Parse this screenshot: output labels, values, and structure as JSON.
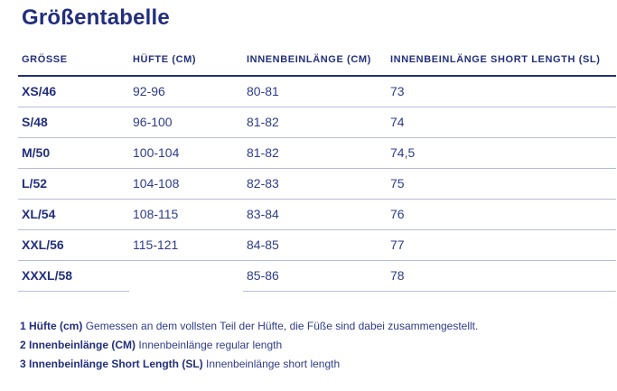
{
  "page": {
    "title": "Größentabelle"
  },
  "table": {
    "headers": [
      "GRÖSSE",
      "HÜFTE (CM)",
      "INNENBEINLÄNGE (CM)",
      "INNENBEINLÄNGE SHORT LENGTH (SL)"
    ],
    "rows": [
      {
        "size": "XS/46",
        "hip": "92-96",
        "inseam": "80-81",
        "inseam_sl": "73"
      },
      {
        "size": "S/48",
        "hip": "96-100",
        "inseam": "81-82",
        "inseam_sl": "74"
      },
      {
        "size": "M/50",
        "hip": "100-104",
        "inseam": "81-82",
        "inseam_sl": "74,5"
      },
      {
        "size": "L/52",
        "hip": "104-108",
        "inseam": "82-83",
        "inseam_sl": "75"
      },
      {
        "size": "XL/54",
        "hip": "108-115",
        "inseam": "83-84",
        "inseam_sl": "76"
      },
      {
        "size": "XXL/56",
        "hip": "115-121",
        "inseam": "84-85",
        "inseam_sl": "77"
      },
      {
        "size": "XXXL/58",
        "hip": "",
        "inseam": "85-86",
        "inseam_sl": "78"
      }
    ]
  },
  "footnotes": [
    {
      "term": "1 Hüfte (cm)",
      "text": "Gemessen an dem vollsten Teil der Hüfte, die Füße sind dabei zusammengestellt."
    },
    {
      "term": "2 Innenbeinlänge (CM)",
      "text": "Innenbeinlänge regular length"
    },
    {
      "term": "3 Innenbeinlänge Short Length (SL)",
      "text": "Innenbeinlänge short length"
    }
  ],
  "colors": {
    "navy": "#222f7d",
    "separator": "#b4bdd9",
    "background": "#ffffff"
  }
}
